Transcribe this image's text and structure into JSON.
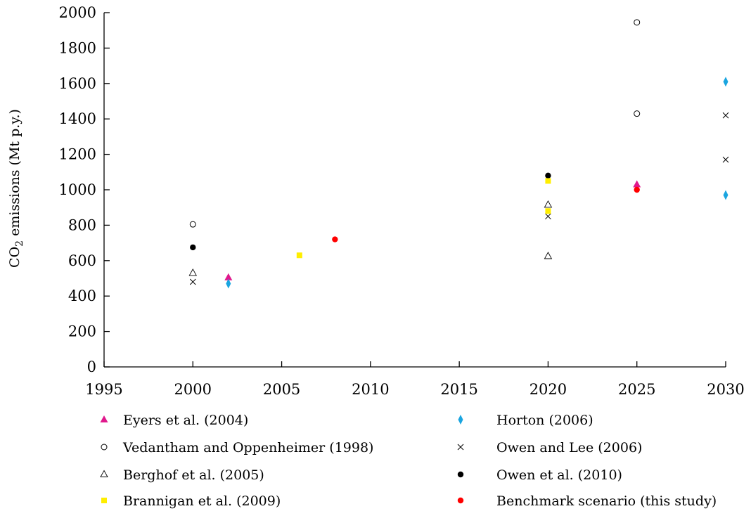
{
  "chart_data": {
    "type": "scatter",
    "title": "",
    "xlabel": "",
    "ylabel": "CO",
    "ylabel_sub": "2",
    "ylabel_rest": " emissions (Mt p.y.)",
    "xlim": [
      1995,
      2030
    ],
    "ylim": [
      0,
      2000
    ],
    "xticks": [
      1995,
      2000,
      2005,
      2010,
      2015,
      2020,
      2025,
      2030
    ],
    "yticks": [
      0,
      200,
      400,
      600,
      800,
      1000,
      1200,
      1400,
      1600,
      1800,
      2000
    ],
    "grid": false,
    "legend_position": "bottom",
    "series": [
      {
        "name": "Eyers et al. (2004)",
        "marker": "triangle-filled",
        "color": "#e0188c",
        "x": [
          2002,
          2025
        ],
        "y": [
          505,
          1030
        ]
      },
      {
        "name": "Horton (2006)",
        "marker": "diamond-filled",
        "color": "#1aa5e0",
        "x": [
          2002,
          2030,
          2030
        ],
        "y": [
          470,
          1610,
          970
        ]
      },
      {
        "name": "Vedantham and Oppenheimer (1998)",
        "marker": "circle-open",
        "color": "#000000",
        "x": [
          2000,
          2025,
          2025
        ],
        "y": [
          805,
          1945,
          1430
        ]
      },
      {
        "name": "Owen and Lee (2006)",
        "marker": "cross",
        "color": "#000000",
        "x": [
          2000,
          2020,
          2030,
          2030
        ],
        "y": [
          480,
          850,
          1420,
          1170
        ]
      },
      {
        "name": "Berghof et al. (2005)",
        "marker": "triangle-open",
        "color": "#000000",
        "x": [
          2000,
          2020,
          2020
        ],
        "y": [
          530,
          915,
          625
        ]
      },
      {
        "name": "Owen et al. (2010)",
        "marker": "circle-filled",
        "color": "#000000",
        "x": [
          2000,
          2020
        ],
        "y": [
          675,
          1080
        ]
      },
      {
        "name": "Brannigan et al. (2009)",
        "marker": "square-filled",
        "color": "#ffee00",
        "x": [
          2006,
          2020,
          2020
        ],
        "y": [
          630,
          1050,
          880
        ]
      },
      {
        "name": "Benchmark scenario (this study)",
        "marker": "circle-filled",
        "color": "#ff0000",
        "x": [
          2008,
          2025
        ],
        "y": [
          720,
          1000
        ]
      }
    ]
  }
}
